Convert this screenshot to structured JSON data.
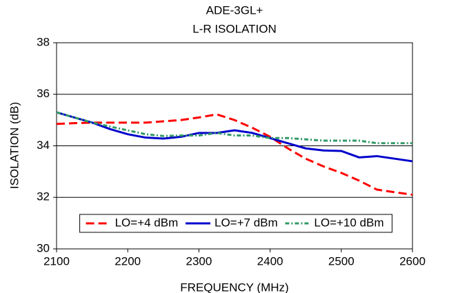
{
  "chart_data": {
    "type": "line",
    "title": "ADE-3GL+",
    "subtitle": "L-R ISOLATION",
    "x_label": "FREQUENCY (MHz)",
    "y_label": "ISOLATION (dB)",
    "x": [
      2100,
      2125,
      2150,
      2175,
      2200,
      2225,
      2250,
      2275,
      2300,
      2325,
      2350,
      2375,
      2400,
      2425,
      2450,
      2475,
      2500,
      2525,
      2550,
      2575,
      2600
    ],
    "series": [
      {
        "name": "LO=+4 dBm",
        "color": "#ff0000",
        "dash": "dashed",
        "values": [
          34.85,
          34.88,
          34.9,
          34.9,
          34.9,
          34.9,
          34.95,
          35.0,
          35.1,
          35.22,
          35.0,
          34.7,
          34.35,
          33.9,
          33.5,
          33.2,
          32.95,
          32.65,
          32.3,
          32.2,
          32.1
        ]
      },
      {
        "name": "LO=+7 dBm",
        "color": "#0000cc",
        "dash": "solid",
        "values": [
          35.3,
          35.1,
          34.9,
          34.65,
          34.45,
          34.32,
          34.28,
          34.35,
          34.5,
          34.5,
          34.6,
          34.5,
          34.3,
          34.1,
          33.9,
          33.82,
          33.8,
          33.55,
          33.6,
          33.5,
          33.4
        ]
      },
      {
        "name": "LO=+10 dBm",
        "color": "#339966",
        "dash": "dashdot",
        "values": [
          35.3,
          35.1,
          34.9,
          34.75,
          34.6,
          34.45,
          34.38,
          34.4,
          34.4,
          34.5,
          34.4,
          34.4,
          34.3,
          34.3,
          34.25,
          34.2,
          34.2,
          34.2,
          34.1,
          34.1,
          34.1
        ]
      }
    ],
    "xlim": [
      2100,
      2600
    ],
    "xticks": [
      2100,
      2200,
      2300,
      2400,
      2500,
      2600
    ],
    "ylim": [
      30,
      38
    ],
    "yticks": [
      30,
      32,
      34,
      36,
      38
    ],
    "grid": true,
    "legend": "bottom"
  }
}
